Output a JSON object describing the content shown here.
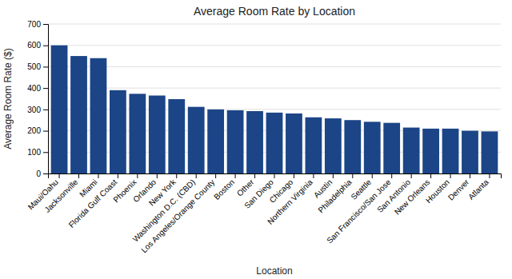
{
  "chart_data": {
    "type": "bar",
    "title": "Average Room Rate by Location",
    "xlabel": "Location",
    "ylabel": "Average Room Rate ($)",
    "categories": [
      "Maui/Oahu",
      "Jacksonville",
      "Miami",
      "Florida Gulf Coast",
      "Phoenix",
      "Orlando",
      "New York",
      "Washington D.C. (CBD)",
      "Los Angeles/Orange County",
      "Boston",
      "Other",
      "San Diego",
      "Chicago",
      "Northern Virginia",
      "Austin",
      "Philadelphia",
      "Seattle",
      "San Francisco/San Jose",
      "San Antonio",
      "New Orleans",
      "Houston",
      "Denver",
      "Atlanta"
    ],
    "values": [
      600,
      550,
      540,
      390,
      373,
      365,
      348,
      312,
      300,
      296,
      292,
      285,
      281,
      263,
      258,
      250,
      242,
      237,
      215,
      210,
      210,
      200,
      197
    ],
    "color": "#1c4587",
    "ylim": [
      0,
      700
    ],
    "yticks": [
      0,
      100,
      200,
      300,
      400,
      500,
      600,
      700
    ],
    "grid": true
  }
}
